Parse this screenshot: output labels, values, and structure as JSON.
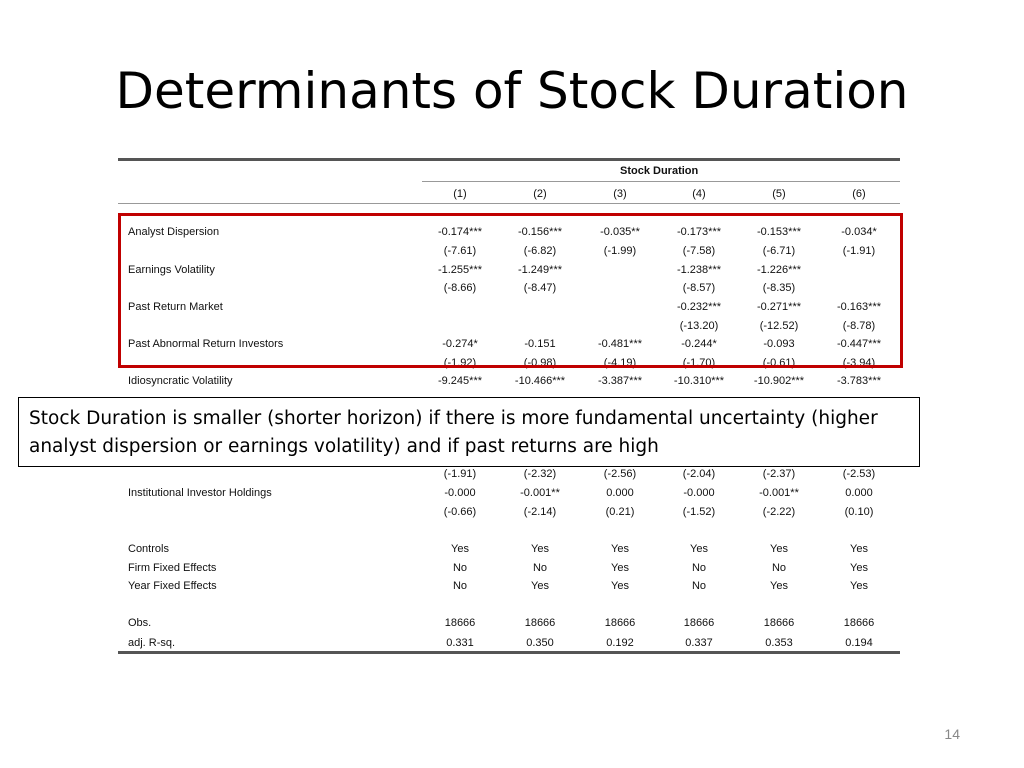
{
  "slide": {
    "title": "Determinants of Stock Duration",
    "callout": "Stock Duration is smaller (shorter horizon) if there is more fundamental uncertainty (higher analyst dispersion or earnings volatility) and if past returns are high",
    "page_number": "14"
  },
  "table": {
    "group_header": "Stock Duration",
    "columns": [
      "(1)",
      "(2)",
      "(3)",
      "(4)",
      "(5)",
      "(6)"
    ],
    "rows": [
      {
        "label": "Analyst Dispersion",
        "values": [
          "-0.174***",
          "-0.156***",
          "-0.035**",
          "-0.173***",
          "-0.153***",
          "-0.034*"
        ]
      },
      {
        "label": "",
        "values": [
          "(-7.61)",
          "(-6.82)",
          "(-1.99)",
          "(-7.58)",
          "(-6.71)",
          "(-1.91)"
        ]
      },
      {
        "label": "Earnings Volatility",
        "values": [
          "-1.255***",
          "-1.249***",
          "",
          "-1.238***",
          "-1.226***",
          ""
        ]
      },
      {
        "label": "",
        "values": [
          "(-8.66)",
          "(-8.47)",
          "",
          "(-8.57)",
          "(-8.35)",
          ""
        ]
      },
      {
        "label": "Past Return Market",
        "values": [
          "",
          "",
          "",
          "-0.232***",
          "-0.271***",
          "-0.163***"
        ]
      },
      {
        "label": "",
        "values": [
          "",
          "",
          "",
          "(-13.20)",
          "(-12.52)",
          "(-8.78)"
        ]
      },
      {
        "label": "Past Abnormal Return Investors",
        "values": [
          "-0.274*",
          "-0.151",
          "-0.481***",
          "-0.244*",
          "-0.093",
          "-0.447***"
        ]
      },
      {
        "label": "",
        "values": [
          "(-1.92)",
          "(-0.98)",
          "(-4.19)",
          "(-1.70)",
          "(-0.61)",
          "(-3.94)"
        ]
      },
      {
        "label": "Idiosyncratic Volatility",
        "values": [
          "-9.245***",
          "-10.466***",
          "-3.387***",
          "-10.310***",
          "-10.902***",
          "-3.783***"
        ]
      },
      {
        "label": "",
        "values": [
          "(-1.91)",
          "(-2.32)",
          "(-2.56)",
          "(-2.04)",
          "(-2.37)",
          "(-2.53)"
        ]
      },
      {
        "label": "Institutional Investor Holdings",
        "values": [
          "-0.000",
          "-0.001**",
          "0.000",
          "-0.000",
          "-0.001**",
          "0.000"
        ]
      },
      {
        "label": "",
        "values": [
          "(-0.66)",
          "(-2.14)",
          "(0.21)",
          "(-1.52)",
          "(-2.22)",
          "(0.10)"
        ]
      },
      {
        "label": "Controls",
        "values": [
          "Yes",
          "Yes",
          "Yes",
          "Yes",
          "Yes",
          "Yes"
        ]
      },
      {
        "label": "Firm Fixed Effects",
        "values": [
          "No",
          "No",
          "Yes",
          "No",
          "No",
          "Yes"
        ]
      },
      {
        "label": "Year Fixed Effects",
        "values": [
          "No",
          "Yes",
          "Yes",
          "No",
          "Yes",
          "Yes"
        ]
      },
      {
        "label": "Obs.",
        "values": [
          "18666",
          "18666",
          "18666",
          "18666",
          "18666",
          "18666"
        ]
      },
      {
        "label": "adj. R-sq.",
        "values": [
          "0.331",
          "0.350",
          "0.192",
          "0.337",
          "0.353",
          "0.194"
        ]
      }
    ]
  }
}
